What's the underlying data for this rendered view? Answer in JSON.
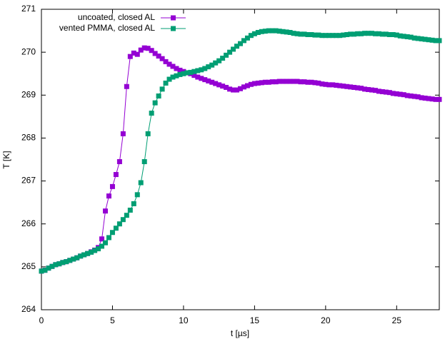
{
  "chart_data": {
    "type": "line",
    "xlabel": "t [µs]",
    "ylabel": "T [K]",
    "xlim": [
      0,
      28
    ],
    "ylim": [
      264,
      271
    ],
    "xticks": [
      0,
      5,
      10,
      15,
      20,
      25
    ],
    "yticks": [
      264,
      265,
      266,
      267,
      268,
      269,
      270,
      271
    ],
    "legend": "top-left",
    "marker": "square",
    "x": [
      0,
      0.25,
      0.5,
      0.75,
      1,
      1.25,
      1.5,
      1.75,
      2,
      2.25,
      2.5,
      2.75,
      3,
      3.25,
      3.5,
      3.75,
      4,
      4.25,
      4.5,
      4.75,
      5,
      5.25,
      5.5,
      5.75,
      6,
      6.25,
      6.5,
      6.75,
      7,
      7.25,
      7.5,
      7.75,
      8,
      8.25,
      8.5,
      8.75,
      9,
      9.25,
      9.5,
      9.75,
      10,
      10.25,
      10.5,
      10.75,
      11,
      11.25,
      11.5,
      11.75,
      12,
      12.25,
      12.5,
      12.75,
      13,
      13.25,
      13.5,
      13.75,
      14,
      14.25,
      14.5,
      14.75,
      15,
      15.25,
      15.5,
      15.75,
      16,
      16.25,
      16.5,
      16.75,
      17,
      17.25,
      17.5,
      17.75,
      18,
      18.25,
      18.5,
      18.75,
      19,
      19.25,
      19.5,
      19.75,
      20,
      20.25,
      20.5,
      20.75,
      21,
      21.25,
      21.5,
      21.75,
      22,
      22.25,
      22.5,
      22.75,
      23,
      23.25,
      23.5,
      23.75,
      24,
      24.25,
      24.5,
      24.75,
      25,
      25.25,
      25.5,
      25.75,
      26,
      26.25,
      26.5,
      26.75,
      27,
      27.25,
      27.5,
      27.75,
      28
    ],
    "series": [
      {
        "name": "uncoated, closed AL",
        "color": "#9400d3",
        "values": [
          264.9,
          264.92,
          264.97,
          265.01,
          265.05,
          265.07,
          265.1,
          265.12,
          265.15,
          265.18,
          265.21,
          265.25,
          265.28,
          265.31,
          265.35,
          265.39,
          265.45,
          265.65,
          266.3,
          266.65,
          266.87,
          267.15,
          267.45,
          268.1,
          269.2,
          269.9,
          269.98,
          269.95,
          270.05,
          270.1,
          270.09,
          270.04,
          269.97,
          269.91,
          269.85,
          269.78,
          269.72,
          269.67,
          269.62,
          269.58,
          269.55,
          269.52,
          269.5,
          269.46,
          269.42,
          269.39,
          269.36,
          269.33,
          269.3,
          269.27,
          269.24,
          269.21,
          269.18,
          269.14,
          269.12,
          269.12,
          269.15,
          269.19,
          269.22,
          269.25,
          269.27,
          269.28,
          269.29,
          269.3,
          269.3,
          269.31,
          269.31,
          269.32,
          269.32,
          269.32,
          269.32,
          269.32,
          269.32,
          269.31,
          269.31,
          269.3,
          269.3,
          269.29,
          269.28,
          269.26,
          269.25,
          269.24,
          269.24,
          269.23,
          269.22,
          269.21,
          269.2,
          269.19,
          269.18,
          269.17,
          269.16,
          269.14,
          269.13,
          269.12,
          269.11,
          269.09,
          269.08,
          269.07,
          269.06,
          269.04,
          269.03,
          269.02,
          269.01,
          268.99,
          268.98,
          268.97,
          268.96,
          268.94,
          268.93,
          268.92,
          268.91,
          268.9,
          268.9
        ]
      },
      {
        "name": "vented PMMA, closed AL",
        "color": "#009e73",
        "values": [
          264.9,
          264.92,
          264.97,
          265.01,
          265.05,
          265.07,
          265.1,
          265.12,
          265.15,
          265.18,
          265.21,
          265.25,
          265.28,
          265.31,
          265.34,
          265.38,
          265.42,
          265.48,
          265.56,
          265.68,
          265.8,
          265.9,
          266.0,
          266.1,
          266.2,
          266.32,
          266.47,
          266.68,
          266.96,
          267.45,
          268.1,
          268.58,
          268.82,
          268.98,
          269.14,
          269.28,
          269.37,
          269.42,
          269.45,
          269.48,
          269.5,
          269.52,
          269.53,
          269.55,
          269.57,
          269.59,
          269.62,
          269.66,
          269.7,
          269.75,
          269.8,
          269.86,
          269.93,
          270.0,
          270.07,
          270.14,
          270.2,
          270.27,
          270.33,
          270.39,
          270.43,
          270.46,
          270.48,
          270.49,
          270.5,
          270.5,
          270.5,
          270.49,
          270.48,
          270.47,
          270.46,
          270.44,
          270.43,
          270.42,
          270.42,
          270.41,
          270.41,
          270.4,
          270.4,
          270.39,
          270.39,
          270.39,
          270.39,
          270.39,
          270.39,
          270.4,
          270.41,
          270.42,
          270.42,
          270.43,
          270.43,
          270.44,
          270.44,
          270.44,
          270.43,
          270.43,
          270.42,
          270.42,
          270.41,
          270.41,
          270.4,
          270.38,
          270.37,
          270.36,
          270.35,
          270.33,
          270.32,
          270.31,
          270.3,
          270.29,
          270.28,
          270.27,
          270.27
        ]
      }
    ]
  }
}
